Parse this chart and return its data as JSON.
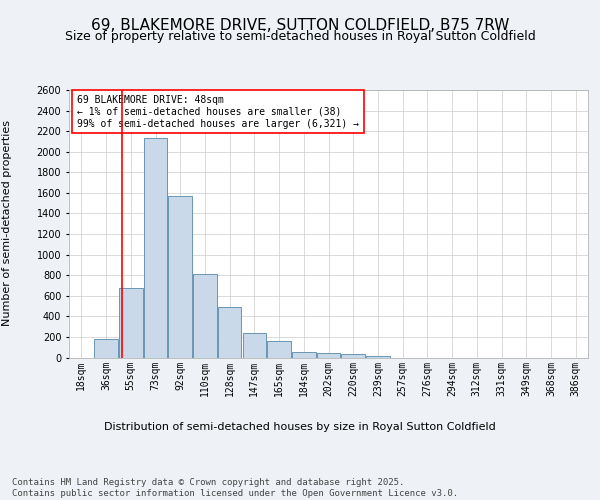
{
  "title": "69, BLAKEMORE DRIVE, SUTTON COLDFIELD, B75 7RW",
  "subtitle": "Size of property relative to semi-detached houses in Royal Sutton Coldfield",
  "xlabel": "Distribution of semi-detached houses by size in Royal Sutton Coldfield",
  "ylabel": "Number of semi-detached properties",
  "footer_line1": "Contains HM Land Registry data © Crown copyright and database right 2025.",
  "footer_line2": "Contains public sector information licensed under the Open Government Licence v3.0.",
  "annotation_title": "69 BLAKEMORE DRIVE: 48sqm",
  "annotation_line1": "← 1% of semi-detached houses are smaller (38)",
  "annotation_line2": "99% of semi-detached houses are larger (6,321) →",
  "bar_categories": [
    "18sqm",
    "36sqm",
    "55sqm",
    "73sqm",
    "92sqm",
    "110sqm",
    "128sqm",
    "147sqm",
    "165sqm",
    "184sqm",
    "202sqm",
    "220sqm",
    "239sqm",
    "257sqm",
    "276sqm",
    "294sqm",
    "312sqm",
    "331sqm",
    "349sqm",
    "368sqm",
    "386sqm"
  ],
  "bar_values": [
    0,
    180,
    680,
    2130,
    1570,
    810,
    490,
    240,
    160,
    55,
    45,
    30,
    10,
    0,
    0,
    0,
    0,
    0,
    0,
    0,
    0
  ],
  "bar_color": "#c9d9e9",
  "bar_edge_color": "#5588aa",
  "ylim": [
    0,
    2600
  ],
  "yticks": [
    0,
    200,
    400,
    600,
    800,
    1000,
    1200,
    1400,
    1600,
    1800,
    2000,
    2200,
    2400,
    2600
  ],
  "background_color": "#eef2f6",
  "plot_background": "#ffffff",
  "grid_color": "#cccccc",
  "title_fontsize": 11,
  "subtitle_fontsize": 9,
  "axis_label_fontsize": 8,
  "tick_fontsize": 7,
  "annotation_fontsize": 7,
  "footer_fontsize": 6.5
}
